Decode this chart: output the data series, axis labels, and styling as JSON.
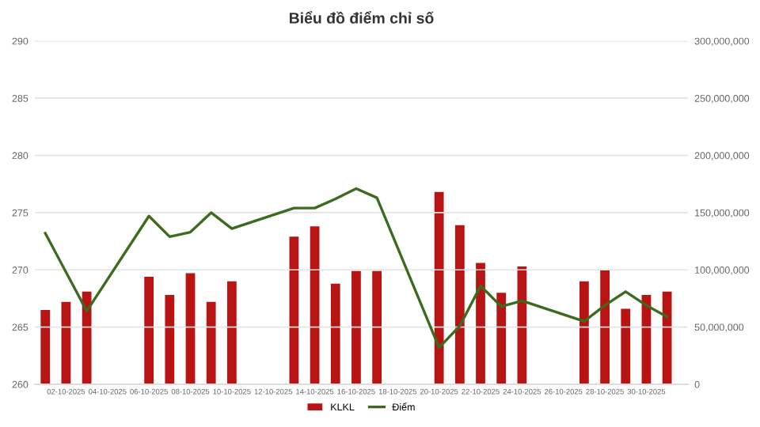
{
  "chart_data": {
    "type": "bar",
    "title": "Biểu đồ điểm chỉ số",
    "x": [
      "2025-10-01",
      "2025-10-02",
      "2025-10-03",
      "2025-10-06",
      "2025-10-07",
      "2025-10-08",
      "2025-10-09",
      "2025-10-10",
      "2025-10-13",
      "2025-10-14",
      "2025-10-15",
      "2025-10-16",
      "2025-10-17",
      "2025-10-20",
      "2025-10-21",
      "2025-10-22",
      "2025-10-23",
      "2025-10-24",
      "2025-10-27",
      "2025-10-28",
      "2025-10-29",
      "2025-10-30",
      "2025-10-31"
    ],
    "series": [
      {
        "name": "KLKL",
        "axis": "y2",
        "color": "#b81414",
        "values": [
          65000000,
          72000000,
          81000000,
          94000000,
          78000000,
          97000000,
          72000000,
          90000000,
          129000000,
          138000000,
          88000000,
          99000000,
          99000000,
          168000000,
          139000000,
          106000000,
          80000000,
          103000000,
          90000000,
          100000000,
          66000000,
          78000000,
          81000000
        ]
      },
      {
        "name": "Điểm",
        "type": "line",
        "color": "#3a6b1e",
        "values": [
          273.2,
          269.8,
          266.4,
          274.7,
          272.9,
          273.3,
          275.0,
          273.6,
          275.4,
          275.4,
          276.2,
          277.1,
          276.3,
          263.2,
          265.1,
          268.6,
          266.8,
          267.3,
          265.5,
          266.9,
          268.1,
          266.9,
          265.9
        ]
      }
    ],
    "xlim": [
      "2025-09-30T12:00",
      "2025-11-01"
    ],
    "xticks": [
      {
        "value": "2025-10-02",
        "label": "02-10-2025"
      },
      {
        "value": "2025-10-04",
        "label": "04-10-2025"
      },
      {
        "value": "2025-10-06",
        "label": "06-10-2025"
      },
      {
        "value": "2025-10-08",
        "label": "08-10-2025"
      },
      {
        "value": "2025-10-10",
        "label": "10-10-2025"
      },
      {
        "value": "2025-10-12",
        "label": "12-10-2025"
      },
      {
        "value": "2025-10-14",
        "label": "14-10-2025"
      },
      {
        "value": "2025-10-16",
        "label": "16-10-2025"
      },
      {
        "value": "2025-10-18",
        "label": "18-10-2025"
      },
      {
        "value": "2025-10-20",
        "label": "20-10-2025"
      },
      {
        "value": "2025-10-22",
        "label": "22-10-2025"
      },
      {
        "value": "2025-10-24",
        "label": "24-10-2025"
      },
      {
        "value": "2025-10-26",
        "label": "26-10-2025"
      },
      {
        "value": "2025-10-28",
        "label": "28-10-2025"
      },
      {
        "value": "2025-10-30",
        "label": "30-10-2025"
      }
    ],
    "ylim": [
      260,
      290
    ],
    "yticks": [
      260,
      265,
      270,
      275,
      280,
      285,
      290
    ],
    "y2lim": [
      0,
      300000000
    ],
    "y2ticks": [
      0,
      {
        "value": 50000000,
        "label": "50,000,000"
      },
      {
        "value": 100000000,
        "label": "100,000,000"
      },
      {
        "value": 150000000,
        "label": "150,000,000"
      },
      {
        "value": 200000000,
        "label": "200,000,000"
      },
      {
        "value": 250000000,
        "label": "250,000,000"
      },
      {
        "value": 300000000,
        "label": "300,000,000"
      }
    ],
    "grid": "y",
    "legend": "bottom",
    "marker": "none",
    "line_style": "solid"
  }
}
